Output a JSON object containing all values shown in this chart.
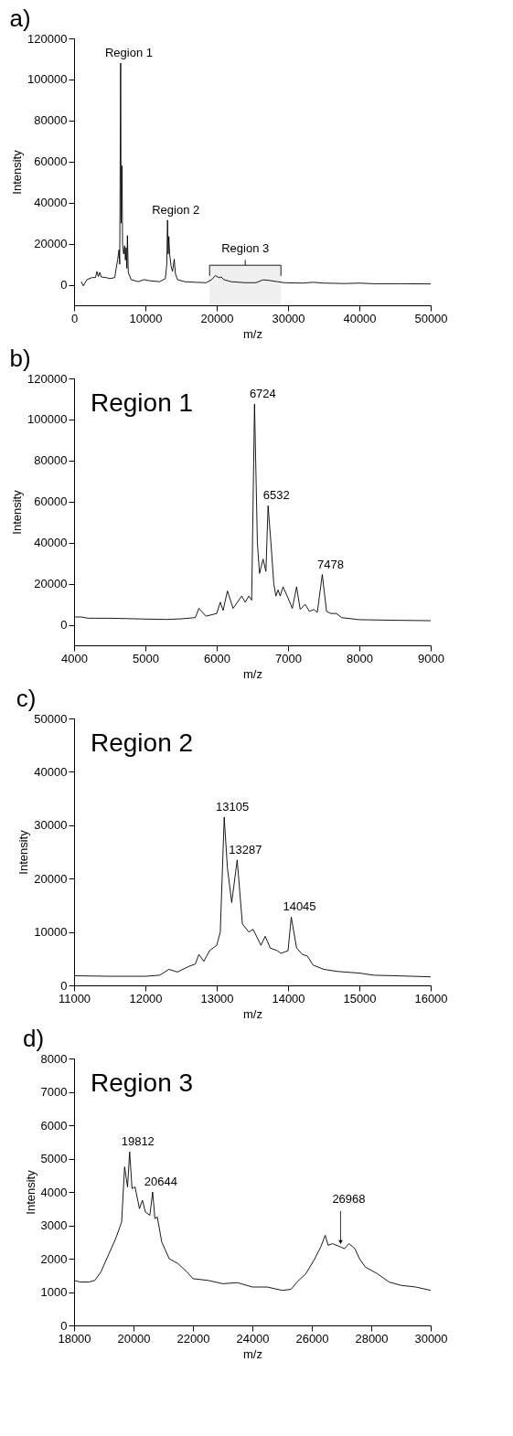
{
  "chart_data": [
    {
      "type": "line",
      "title": "a)",
      "xlabel": "m/z",
      "ylabel": "Intensity",
      "color": "#000000",
      "xlim": [
        0,
        50000
      ],
      "xticks": [
        0,
        10000,
        20000,
        30000,
        40000,
        50000
      ],
      "ylim": [
        -10000,
        120000
      ],
      "yticks": [
        0,
        20000,
        40000,
        60000,
        80000,
        100000,
        120000
      ],
      "x": [
        1000,
        1300,
        1800,
        2500,
        3000,
        3200,
        3400,
        3600,
        3800,
        4500,
        5000,
        5700,
        5900,
        6100,
        6300,
        6400,
        6530,
        6600,
        6720,
        6800,
        6880,
        6950,
        7100,
        7200,
        7300,
        7400,
        7480,
        7600,
        8000,
        9000,
        9800,
        10500,
        12000,
        12800,
        13000,
        13105,
        13200,
        13287,
        13400,
        13600,
        13800,
        14045,
        14200,
        14500,
        15500,
        17000,
        18500,
        19300,
        19812,
        20300,
        20644,
        21000,
        22000,
        24000,
        25500,
        26500,
        27200,
        28500,
        29500,
        32000,
        33500,
        35000,
        38000,
        40000,
        42000,
        46000,
        50000
      ],
      "values": [
        1500,
        -500,
        2500,
        3500,
        3500,
        6500,
        4000,
        6000,
        3800,
        3500,
        3000,
        3500,
        8000,
        12000,
        17000,
        10000,
        108000,
        30000,
        58000,
        20000,
        17000,
        15000,
        19000,
        12000,
        18000,
        8000,
        24000,
        6000,
        2500,
        1500,
        2500,
        2000,
        1500,
        3000,
        10000,
        31500,
        15000,
        23500,
        15000,
        9000,
        6500,
        12500,
        5500,
        2500,
        1500,
        1200,
        1000,
        2500,
        4500,
        3500,
        3800,
        2500,
        1500,
        1000,
        1000,
        2400,
        2200,
        1500,
        1000,
        800,
        1200,
        800,
        600,
        800,
        500,
        500,
        400
      ],
      "annotations": [
        {
          "text": "Region 1",
          "x": 6530,
          "y": 108000
        },
        {
          "text": "Region 2",
          "x": 13105,
          "y": 31500
        }
      ],
      "bands": [
        {
          "axis": "x",
          "from": 19000,
          "to": 29000,
          "label": "Region 3"
        }
      ]
    },
    {
      "type": "line",
      "title": "b)",
      "xlabel": "m/z",
      "ylabel": "Intensity",
      "color": "#000000",
      "xlim": [
        4000,
        9000
      ],
      "xticks": [
        4000,
        5000,
        6000,
        7000,
        8000,
        9000
      ],
      "ylim": [
        -10000,
        120000
      ],
      "yticks": [
        0,
        20000,
        40000,
        60000,
        80000,
        100000,
        120000
      ],
      "x": [
        4000,
        4100,
        4200,
        4500,
        5000,
        5300,
        5500,
        5700,
        5750,
        5850,
        6000,
        6050,
        6090,
        6150,
        6230,
        6350,
        6400,
        6450,
        6490,
        6530,
        6570,
        6600,
        6650,
        6690,
        6720,
        6760,
        6800,
        6830,
        6860,
        6890,
        6930,
        7000,
        7060,
        7120,
        7170,
        7240,
        7300,
        7360,
        7410,
        7480,
        7540,
        7600,
        7680,
        7750,
        8000,
        8500,
        9000
      ],
      "values": [
        3800,
        3800,
        3200,
        3200,
        2800,
        2600,
        2900,
        3500,
        8000,
        4200,
        5500,
        11000,
        7000,
        16500,
        8000,
        14000,
        11000,
        14000,
        12000,
        107500,
        40000,
        25000,
        32000,
        26000,
        58000,
        40000,
        20000,
        14000,
        17000,
        14000,
        18500,
        13000,
        8000,
        18500,
        7500,
        10000,
        6500,
        7500,
        6000,
        24500,
        6500,
        5500,
        5500,
        3500,
        2500,
        2200,
        2000
      ],
      "annotations": [
        "Region 1",
        {
          "text": "6724",
          "x": 6530,
          "y": 107500
        },
        {
          "text": "6532",
          "x": 6720,
          "y": 58000
        },
        {
          "text": "7478",
          "x": 7480,
          "y": 24500
        }
      ]
    },
    {
      "type": "line",
      "title": "c)",
      "xlabel": "m/z",
      "ylabel": "Intensity",
      "color": "#000000",
      "xlim": [
        11000,
        16000
      ],
      "xticks": [
        11000,
        12000,
        13000,
        14000,
        15000,
        16000
      ],
      "ylim": [
        0,
        50000
      ],
      "yticks": [
        0,
        10000,
        20000,
        30000,
        40000,
        50000
      ],
      "x": [
        11000,
        11500,
        12000,
        12200,
        12330,
        12450,
        12600,
        12700,
        12750,
        12820,
        12900,
        13000,
        13050,
        13105,
        13150,
        13210,
        13287,
        13360,
        13450,
        13510,
        13620,
        13680,
        13750,
        13850,
        13900,
        14000,
        14045,
        14120,
        14200,
        14270,
        14350,
        14500,
        14700,
        15000,
        15200,
        15500,
        16000
      ],
      "values": [
        1800,
        1700,
        1700,
        1900,
        3000,
        2500,
        3500,
        4000,
        5800,
        4500,
        6500,
        7500,
        10000,
        31500,
        22000,
        15500,
        23500,
        11500,
        10000,
        10500,
        7500,
        9200,
        7000,
        6500,
        6000,
        6500,
        12800,
        7000,
        5800,
        5500,
        3800,
        3000,
        2600,
        2300,
        1900,
        1800,
        1600
      ],
      "annotations": [
        "Region 2",
        {
          "text": "13105",
          "x": 13105,
          "y": 31500
        },
        {
          "text": "13287",
          "x": 13287,
          "y": 23500
        },
        {
          "text": "14045",
          "x": 14045,
          "y": 12800
        }
      ]
    },
    {
      "type": "line",
      "title": "d)",
      "xlabel": "m/z",
      "ylabel": "Intensity",
      "color": "#000000",
      "xlim": [
        18000,
        30000
      ],
      "xticks": [
        18000,
        20000,
        22000,
        24000,
        26000,
        28000,
        30000
      ],
      "ylim": [
        0,
        8000
      ],
      "yticks": [
        0,
        1000,
        2000,
        3000,
        4000,
        5000,
        6000,
        7000,
        8000
      ],
      "x": [
        18000,
        18200,
        18500,
        18700,
        18900,
        19200,
        19400,
        19600,
        19700,
        19800,
        19870,
        19950,
        20050,
        20200,
        20300,
        20400,
        20550,
        20644,
        20720,
        20800,
        20950,
        21200,
        21500,
        21800,
        22000,
        22500,
        23000,
        23500,
        24000,
        24500,
        25000,
        25300,
        25500,
        25800,
        26100,
        26300,
        26450,
        26550,
        26700,
        26968,
        27100,
        27250,
        27450,
        27600,
        27800,
        28200,
        28600,
        29000,
        29500,
        30000
      ],
      "values": [
        1350,
        1300,
        1300,
        1350,
        1600,
        2200,
        2600,
        3100,
        4750,
        4150,
        5200,
        4100,
        4150,
        3500,
        3750,
        3400,
        3300,
        4000,
        3200,
        3250,
        2500,
        2000,
        1850,
        1600,
        1400,
        1350,
        1250,
        1280,
        1150,
        1150,
        1050,
        1080,
        1300,
        1550,
        2000,
        2350,
        2700,
        2400,
        2450,
        2350,
        2300,
        2450,
        2300,
        2000,
        1750,
        1550,
        1300,
        1200,
        1150,
        1050
      ],
      "annotations": [
        "Region 3",
        {
          "text": "19812",
          "x": 19870,
          "y": 5200
        },
        {
          "text": "20644",
          "x": 20644,
          "y": 4000
        },
        {
          "text": "26968",
          "x": 26968,
          "y": 2350
        }
      ]
    }
  ]
}
